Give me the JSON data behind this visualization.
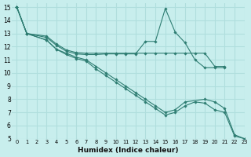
{
  "xlabel": "Humidex (Indice chaleur)",
  "xlim": [
    -0.5,
    23
  ],
  "ylim": [
    5,
    15.3
  ],
  "xticks": [
    0,
    1,
    2,
    3,
    4,
    5,
    6,
    7,
    8,
    9,
    10,
    11,
    12,
    13,
    14,
    15,
    16,
    17,
    18,
    19,
    20,
    21,
    22,
    23
  ],
  "yticks": [
    5,
    6,
    7,
    8,
    9,
    10,
    11,
    12,
    13,
    14,
    15
  ],
  "bg_color": "#c8eeed",
  "grid_color": "#b0dedd",
  "line_color": "#2e7d72",
  "lines": [
    {
      "x": [
        0,
        1,
        3,
        4,
        5,
        6,
        7,
        8,
        9,
        10,
        11,
        12,
        13,
        14,
        15,
        16,
        17,
        18,
        19,
        20,
        21
      ],
      "y": [
        15,
        13,
        12.8,
        12.2,
        11.75,
        11.55,
        11.5,
        11.5,
        11.5,
        11.5,
        11.5,
        11.5,
        11.5,
        11.5,
        11.5,
        11.5,
        11.5,
        11.5,
        11.5,
        10.5,
        10.5
      ]
    },
    {
      "x": [
        0,
        1,
        3,
        4,
        5,
        6,
        7,
        8,
        9,
        10,
        11,
        12,
        13,
        14,
        15,
        16,
        17,
        18,
        19,
        20,
        21
      ],
      "y": [
        15,
        13,
        12.7,
        12.1,
        11.65,
        11.45,
        11.4,
        11.4,
        11.45,
        11.45,
        11.45,
        11.45,
        12.4,
        12.4,
        14.9,
        13.1,
        12.3,
        11.0,
        10.4,
        10.4,
        10.4
      ]
    },
    {
      "x": [
        0,
        1,
        3,
        4,
        5,
        6,
        7,
        8,
        9,
        10,
        11,
        12,
        13,
        14,
        15,
        16,
        17,
        19,
        20,
        21,
        22,
        23
      ],
      "y": [
        15,
        13,
        12.5,
        11.8,
        11.5,
        11.2,
        11.0,
        10.5,
        10.0,
        9.5,
        9.0,
        8.5,
        8.0,
        7.5,
        7.0,
        7.2,
        7.8,
        8.0,
        7.8,
        7.3,
        5.3,
        5.0
      ]
    },
    {
      "x": [
        0,
        1,
        3,
        4,
        5,
        6,
        7,
        8,
        9,
        10,
        11,
        12,
        13,
        14,
        15,
        16,
        17,
        18,
        19,
        20,
        21,
        22,
        23
      ],
      "y": [
        15,
        13,
        12.5,
        11.8,
        11.4,
        11.1,
        10.9,
        10.3,
        9.8,
        9.3,
        8.8,
        8.3,
        7.8,
        7.3,
        6.8,
        7.0,
        7.5,
        7.8,
        7.7,
        7.2,
        7.0,
        5.2,
        5.0
      ]
    }
  ]
}
